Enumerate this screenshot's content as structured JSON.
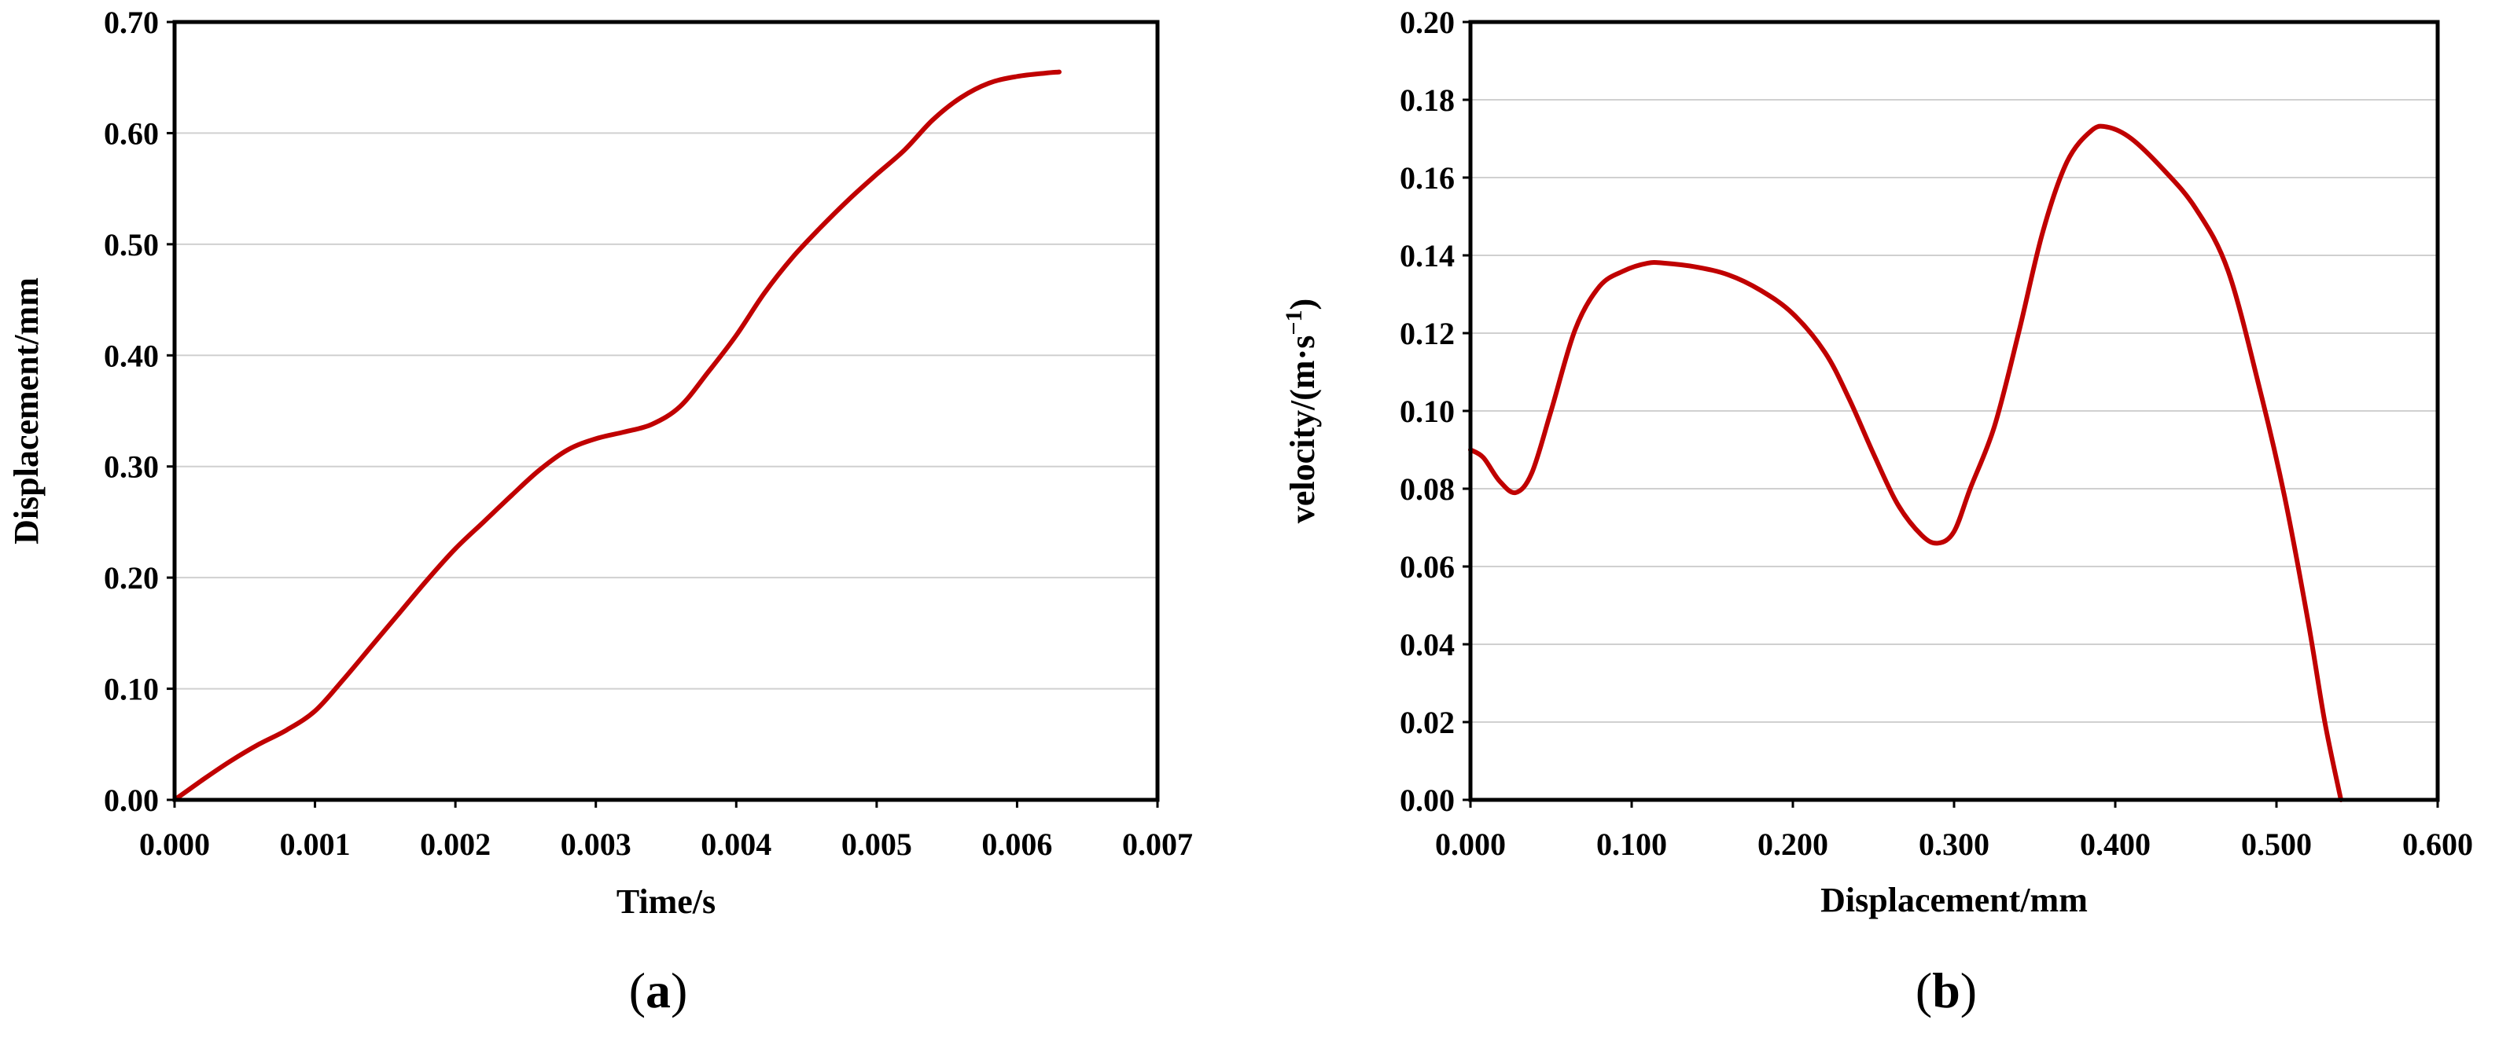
{
  "chart_data": [
    {
      "type": "line",
      "panel_label": "a",
      "xlabel": "Time/s",
      "ylabel": "Displacement/mm",
      "xlim": [
        0,
        0.007
      ],
      "ylim": [
        0,
        0.7
      ],
      "x_ticks": [
        "0.000",
        "0.001",
        "0.002",
        "0.003",
        "0.004",
        "0.005",
        "0.006",
        "0.007"
      ],
      "y_ticks": [
        "0.00",
        "0.10",
        "0.20",
        "0.30",
        "0.40",
        "0.50",
        "0.60",
        "0.70"
      ],
      "grid": "horizontal",
      "series": [
        {
          "color": "#c00000",
          "x": [
            0,
            0.0002,
            0.0004,
            0.0006,
            0.0008,
            0.001,
            0.0012,
            0.0014,
            0.0016,
            0.0018,
            0.002,
            0.0022,
            0.0024,
            0.0026,
            0.0028,
            0.003,
            0.0032,
            0.0034,
            0.0036,
            0.0038,
            0.004,
            0.0042,
            0.0044,
            0.0046,
            0.0048,
            0.005,
            0.0052,
            0.0054,
            0.0056,
            0.0058,
            0.006,
            0.0062,
            0.0063
          ],
          "y": [
            0,
            0.018,
            0.035,
            0.05,
            0.063,
            0.08,
            0.108,
            0.138,
            0.168,
            0.198,
            0.226,
            0.25,
            0.274,
            0.297,
            0.315,
            0.325,
            0.331,
            0.338,
            0.354,
            0.385,
            0.418,
            0.456,
            0.488,
            0.515,
            0.54,
            0.563,
            0.585,
            0.612,
            0.632,
            0.645,
            0.651,
            0.654,
            0.655
          ]
        }
      ]
    },
    {
      "type": "line",
      "panel_label": "b",
      "xlabel": "Displacement/mm",
      "ylabel_main": "velocity/(m·s",
      "ylabel_sup": "−1",
      "ylabel_end": ")",
      "xlim": [
        0,
        0.6
      ],
      "ylim": [
        0,
        0.2
      ],
      "x_ticks": [
        "0.000",
        "0.100",
        "0.200",
        "0.300",
        "0.400",
        "0.500",
        "0.600"
      ],
      "y_ticks": [
        "0.00",
        "0.02",
        "0.04",
        "0.06",
        "0.08",
        "0.10",
        "0.12",
        "0.14",
        "0.16",
        "0.18",
        "0.20"
      ],
      "grid": "horizontal",
      "series": [
        {
          "color": "#c00000",
          "x": [
            0,
            0.008,
            0.018,
            0.028,
            0.038,
            0.05,
            0.065,
            0.08,
            0.095,
            0.11,
            0.12,
            0.14,
            0.16,
            0.18,
            0.2,
            0.22,
            0.235,
            0.25,
            0.265,
            0.28,
            0.29,
            0.3,
            0.31,
            0.325,
            0.34,
            0.355,
            0.37,
            0.385,
            0.395,
            0.41,
            0.43,
            0.45,
            0.47,
            0.49,
            0.505,
            0.52,
            0.53,
            0.54
          ],
          "y": [
            0.09,
            0.088,
            0.082,
            0.079,
            0.084,
            0.1,
            0.121,
            0.132,
            0.136,
            0.138,
            0.138,
            0.137,
            0.135,
            0.131,
            0.125,
            0.115,
            0.103,
            0.089,
            0.076,
            0.068,
            0.066,
            0.069,
            0.08,
            0.096,
            0.12,
            0.146,
            0.164,
            0.172,
            0.173,
            0.17,
            0.162,
            0.152,
            0.136,
            0.105,
            0.078,
            0.045,
            0.02,
            0
          ]
        }
      ]
    }
  ]
}
